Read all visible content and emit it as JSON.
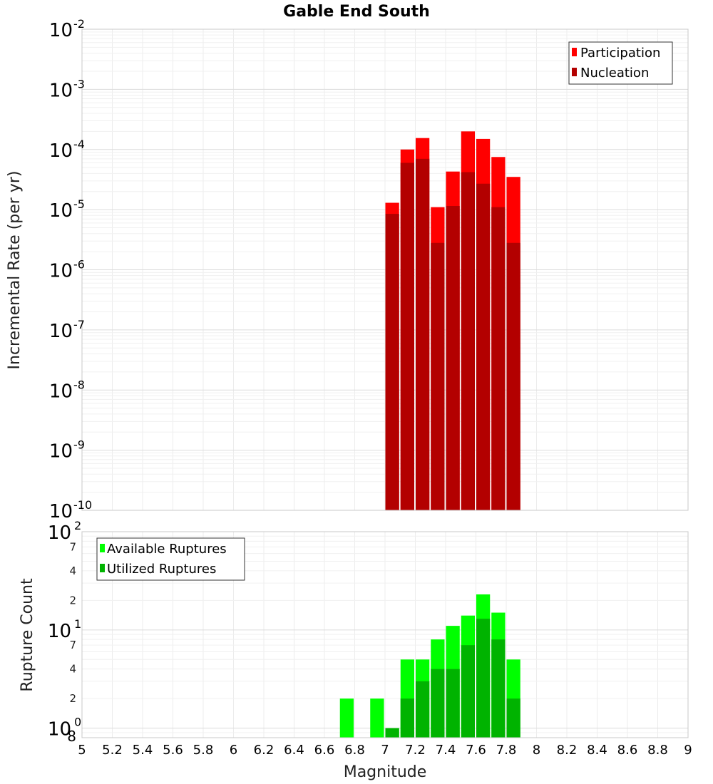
{
  "chart_data": [
    {
      "type": "bar",
      "title": "Gable End South",
      "xlabel": "",
      "ylabel": "Incremental Rate (per yr)",
      "yscale": "log",
      "ylim": [
        1e-10,
        0.01
      ],
      "xlim": [
        5,
        9
      ],
      "bar_width": 0.1,
      "grid": true,
      "legend_position": "top-right",
      "x": [
        7.0,
        7.1,
        7.2,
        7.3,
        7.4,
        7.5,
        7.6,
        7.7,
        7.8
      ],
      "series": [
        {
          "name": "Participation",
          "color": "#ff0000",
          "values": [
            1.3e-05,
            0.0001,
            0.000155,
            1.1e-05,
            4.3e-05,
            0.0002,
            0.00015,
            7.5e-05,
            3.5e-05
          ]
        },
        {
          "name": "Nucleation",
          "color": "#b30000",
          "values": [
            8.5e-06,
            6e-05,
            7e-05,
            2.8e-06,
            1.15e-05,
            4.2e-05,
            2.7e-05,
            1.1e-05,
            2.8e-06
          ]
        }
      ],
      "y_major_ticks": [
        {
          "base": "10",
          "exp": "-2"
        },
        {
          "base": "10",
          "exp": "-3"
        },
        {
          "base": "10",
          "exp": "-4"
        },
        {
          "base": "10",
          "exp": "-5"
        },
        {
          "base": "10",
          "exp": "-6"
        },
        {
          "base": "10",
          "exp": "-7"
        },
        {
          "base": "10",
          "exp": "-8"
        },
        {
          "base": "10",
          "exp": "-9"
        },
        {
          "base": "10",
          "exp": "-10"
        }
      ]
    },
    {
      "type": "bar",
      "title": "",
      "xlabel": "Magnitude",
      "ylabel": "Rupture Count",
      "yscale": "log",
      "ylim": [
        0.8,
        100
      ],
      "xlim": [
        5,
        9
      ],
      "bar_width": 0.1,
      "grid": true,
      "legend_position": "top-left",
      "x": [
        6.7,
        6.9,
        7.0,
        7.1,
        7.2,
        7.3,
        7.4,
        7.5,
        7.6,
        7.7,
        7.8
      ],
      "series": [
        {
          "name": "Available Ruptures",
          "color": "#00ff00",
          "values": [
            2,
            2,
            1,
            5,
            5,
            8,
            11,
            14,
            23,
            15,
            5
          ]
        },
        {
          "name": "Utilized Ruptures",
          "color": "#00b300",
          "values": [
            0,
            0,
            1,
            2,
            3,
            4,
            4,
            7,
            13,
            8,
            2
          ]
        }
      ],
      "y_major_ticks": [
        {
          "base": "10",
          "exp": "2"
        },
        {
          "base": "10",
          "exp": "1"
        },
        {
          "base": "10",
          "exp": "0"
        }
      ],
      "y_minor_labels": [
        "7",
        "4",
        "2",
        "7",
        "4",
        "2",
        "8"
      ],
      "x_tick_labels": [
        "5",
        "5.2",
        "5.4",
        "5.6",
        "5.8",
        "6",
        "6.2",
        "6.4",
        "6.6",
        "6.8",
        "7",
        "7.2",
        "7.4",
        "7.6",
        "7.8",
        "8",
        "8.2",
        "8.4",
        "8.6",
        "8.8",
        "9"
      ]
    }
  ]
}
